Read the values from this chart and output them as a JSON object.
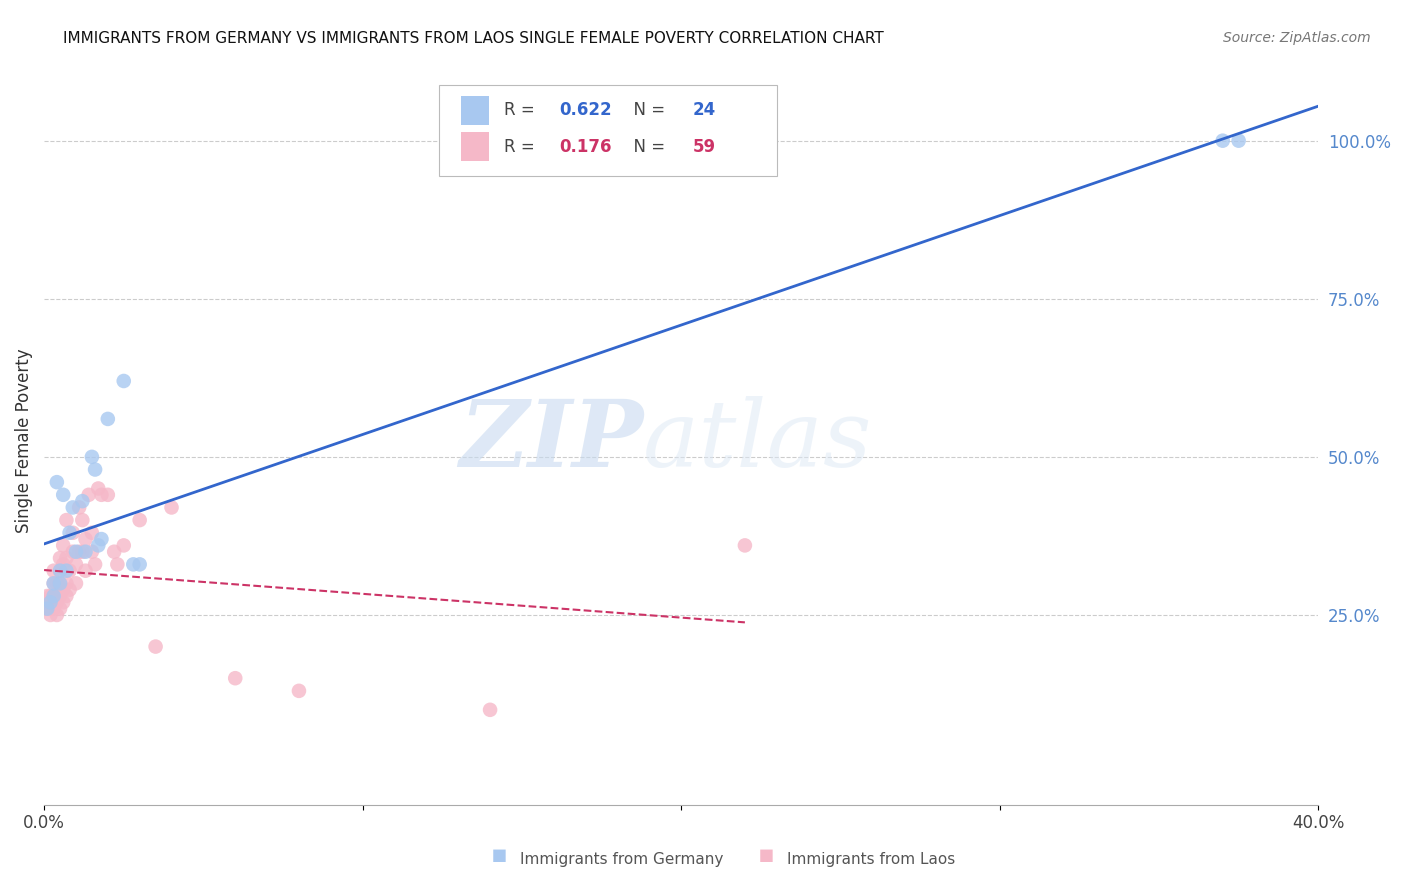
{
  "title": "IMMIGRANTS FROM GERMANY VS IMMIGRANTS FROM LAOS SINGLE FEMALE POVERTY CORRELATION CHART",
  "source": "Source: ZipAtlas.com",
  "ylabel": "Single Female Poverty",
  "xlim": [
    0.0,
    0.4
  ],
  "ylim": [
    -0.05,
    1.1
  ],
  "ytick_positions": [
    0.25,
    0.5,
    0.75,
    1.0
  ],
  "ytick_labels": [
    "25.0%",
    "50.0%",
    "75.0%",
    "100.0%"
  ],
  "germany_R": 0.622,
  "germany_N": 24,
  "laos_R": 0.176,
  "laos_N": 59,
  "germany_color": "#a8c8f0",
  "laos_color": "#f5b8c8",
  "germany_line_color": "#3366cc",
  "laos_line_color": "#cc3366",
  "right_label_color": "#5588cc",
  "germany_x": [
    0.001,
    0.002,
    0.003,
    0.003,
    0.004,
    0.005,
    0.005,
    0.006,
    0.007,
    0.008,
    0.009,
    0.01,
    0.012,
    0.013,
    0.015,
    0.016,
    0.017,
    0.018,
    0.02,
    0.025,
    0.028,
    0.03,
    0.37,
    0.375
  ],
  "germany_y": [
    0.26,
    0.27,
    0.3,
    0.28,
    0.46,
    0.3,
    0.32,
    0.44,
    0.32,
    0.38,
    0.42,
    0.35,
    0.43,
    0.35,
    0.5,
    0.48,
    0.36,
    0.37,
    0.56,
    0.62,
    0.33,
    0.33,
    1.0,
    1.0
  ],
  "laos_x": [
    0.001,
    0.001,
    0.001,
    0.001,
    0.002,
    0.002,
    0.002,
    0.002,
    0.003,
    0.003,
    0.003,
    0.003,
    0.003,
    0.004,
    0.004,
    0.004,
    0.004,
    0.005,
    0.005,
    0.005,
    0.005,
    0.005,
    0.006,
    0.006,
    0.006,
    0.006,
    0.007,
    0.007,
    0.007,
    0.007,
    0.008,
    0.008,
    0.009,
    0.009,
    0.01,
    0.01,
    0.011,
    0.011,
    0.012,
    0.012,
    0.013,
    0.013,
    0.014,
    0.015,
    0.015,
    0.016,
    0.017,
    0.018,
    0.02,
    0.022,
    0.023,
    0.025,
    0.03,
    0.035,
    0.04,
    0.06,
    0.08,
    0.14,
    0.22
  ],
  "laos_y": [
    0.27,
    0.28,
    0.26,
    0.27,
    0.25,
    0.26,
    0.27,
    0.28,
    0.26,
    0.27,
    0.28,
    0.3,
    0.32,
    0.25,
    0.27,
    0.28,
    0.3,
    0.26,
    0.28,
    0.3,
    0.32,
    0.34,
    0.27,
    0.29,
    0.33,
    0.36,
    0.28,
    0.3,
    0.34,
    0.4,
    0.29,
    0.32,
    0.35,
    0.38,
    0.3,
    0.33,
    0.35,
    0.42,
    0.35,
    0.4,
    0.32,
    0.37,
    0.44,
    0.35,
    0.38,
    0.33,
    0.45,
    0.44,
    0.44,
    0.35,
    0.33,
    0.36,
    0.4,
    0.2,
    0.42,
    0.15,
    0.13,
    0.1,
    0.36
  ],
  "laos_line_x_end": 0.22,
  "watermark_zip": "ZIP",
  "watermark_atlas": "atlas",
  "background_color": "#ffffff",
  "grid_color": "#cccccc"
}
